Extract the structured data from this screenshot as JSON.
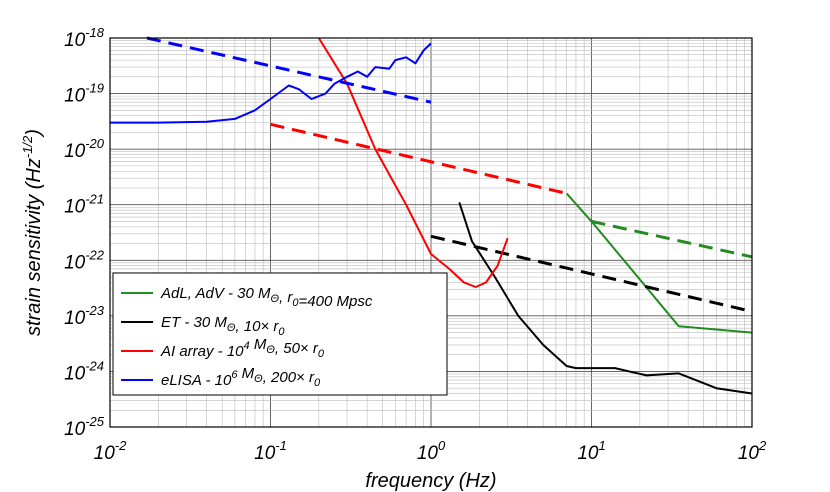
{
  "chart_data": {
    "type": "line",
    "xscale": "log",
    "yscale": "log",
    "xlim": [
      0.01,
      100
    ],
    "ylim": [
      1e-25,
      1e-18
    ],
    "grid": true,
    "xlabel": "frequency (Hz)",
    "ylabel": {
      "base": "strain sensitivity (Hz",
      "sup": "-1/2",
      "tail": ")"
    },
    "x_ticks": [
      {
        "value": 0.01,
        "base": "10",
        "exp": "-2"
      },
      {
        "value": 0.1,
        "base": "10",
        "exp": "-1"
      },
      {
        "value": 1,
        "base": "10",
        "exp": "0"
      },
      {
        "value": 10,
        "base": "10",
        "exp": "1"
      },
      {
        "value": 100,
        "base": "10",
        "exp": "2"
      }
    ],
    "y_ticks": [
      {
        "value": 1e-25,
        "base": "10",
        "exp": "-25"
      },
      {
        "value": 1e-24,
        "base": "10",
        "exp": "-24"
      },
      {
        "value": 1e-23,
        "base": "10",
        "exp": "-23"
      },
      {
        "value": 1e-22,
        "base": "10",
        "exp": "-22"
      },
      {
        "value": 1e-21,
        "base": "10",
        "exp": "-21"
      },
      {
        "value": 1e-20,
        "base": "10",
        "exp": "-20"
      },
      {
        "value": 1e-19,
        "base": "10",
        "exp": "-19"
      },
      {
        "value": 1e-18,
        "base": "10",
        "exp": "-18"
      }
    ],
    "legend_position": "bottom-left",
    "series": [
      {
        "name": "AdL, AdV",
        "color": "#228b22",
        "style": "solid",
        "legend": [
          {
            "t": "AdL, AdV - 30 M"
          },
          {
            "t": "Θ",
            "sub": true
          },
          {
            "t": ", r"
          },
          {
            "t": "0",
            "sub": true
          },
          {
            "t": "=400 Mpsc"
          }
        ],
        "points": [
          [
            7,
            1.6e-21
          ],
          [
            10,
            5e-22
          ],
          [
            35,
            6.5e-24
          ],
          [
            100,
            5e-24
          ]
        ]
      },
      {
        "name": "AdL, AdV signal",
        "color": "#228b22",
        "style": "dashed",
        "points": [
          [
            10,
            5e-22
          ],
          [
            100,
            1.15e-22
          ]
        ]
      },
      {
        "name": "ET",
        "color": "#000000",
        "style": "solid",
        "legend": [
          {
            "t": "ET - 30 M"
          },
          {
            "t": "Θ",
            "sub": true
          },
          {
            "t": ", 10× r"
          },
          {
            "t": "0",
            "sub": true
          }
        ],
        "points": [
          [
            1.5,
            1.1e-21
          ],
          [
            1.8,
            2.2e-22
          ],
          [
            2.5,
            5e-23
          ],
          [
            3.5,
            1e-23
          ],
          [
            5,
            3e-24
          ],
          [
            7,
            1.25e-24
          ],
          [
            8,
            1.15e-24
          ],
          [
            10,
            1.15e-24
          ],
          [
            14,
            1.15e-24
          ],
          [
            22,
            8.5e-25
          ],
          [
            30,
            9e-25
          ],
          [
            35,
            9.2e-25
          ],
          [
            60,
            5e-25
          ],
          [
            100,
            4e-25
          ]
        ]
      },
      {
        "name": "ET signal",
        "color": "#000000",
        "style": "dashed",
        "points": [
          [
            1,
            2.7e-22
          ],
          [
            100,
            1.2e-23
          ]
        ]
      },
      {
        "name": "AI array",
        "color": "#ff0000",
        "style": "solid",
        "legend": [
          {
            "t": "AI array - 10"
          },
          {
            "t": "4",
            "sup": true
          },
          {
            "t": " M"
          },
          {
            "t": "Θ",
            "sub": true
          },
          {
            "t": ", 50× r"
          },
          {
            "t": "0",
            "sub": true
          }
        ],
        "points": [
          [
            0.2,
            1e-18
          ],
          [
            0.3,
            1.5e-19
          ],
          [
            0.45,
            1e-20
          ],
          [
            0.55,
            3.5e-21
          ],
          [
            0.7,
            1e-21
          ],
          [
            1,
            1.3e-22
          ],
          [
            1.3,
            7e-23
          ],
          [
            1.6,
            4e-23
          ],
          [
            1.9,
            3.3e-23
          ],
          [
            2.2,
            4e-23
          ],
          [
            2.6,
            8e-23
          ],
          [
            3,
            2.5e-22
          ]
        ]
      },
      {
        "name": "AI array signal",
        "color": "#ff0000",
        "style": "dashed",
        "points": [
          [
            0.1,
            2.8e-20
          ],
          [
            7,
            1.6e-21
          ]
        ]
      },
      {
        "name": "eLISA",
        "color": "#0000ff",
        "style": "solid",
        "legend": [
          {
            "t": "eLISA - 10"
          },
          {
            "t": "6",
            "sup": true
          },
          {
            "t": " M"
          },
          {
            "t": "Θ",
            "sub": true
          },
          {
            "t": ", 200× r"
          },
          {
            "t": "0",
            "sub": true
          }
        ],
        "points": [
          [
            0.01,
            3e-20
          ],
          [
            0.02,
            3e-20
          ],
          [
            0.04,
            3.1e-20
          ],
          [
            0.06,
            3.5e-20
          ],
          [
            0.08,
            5e-20
          ],
          [
            0.1,
            8e-20
          ],
          [
            0.13,
            1.4e-19
          ],
          [
            0.15,
            1.2e-19
          ],
          [
            0.18,
            8e-20
          ],
          [
            0.22,
            1e-19
          ],
          [
            0.25,
            1.5e-19
          ],
          [
            0.3,
            2e-19
          ],
          [
            0.35,
            2.5e-19
          ],
          [
            0.4,
            2e-19
          ],
          [
            0.45,
            3e-19
          ],
          [
            0.55,
            2.8e-19
          ],
          [
            0.6,
            4e-19
          ],
          [
            0.7,
            4.5e-19
          ],
          [
            0.8,
            3.5e-19
          ],
          [
            0.9,
            6e-19
          ],
          [
            1,
            8e-19
          ]
        ]
      },
      {
        "name": "eLISA signal",
        "color": "#0000ff",
        "style": "dashed",
        "points": [
          [
            0.017,
            1e-18
          ],
          [
            1,
            7e-20
          ]
        ]
      }
    ]
  }
}
